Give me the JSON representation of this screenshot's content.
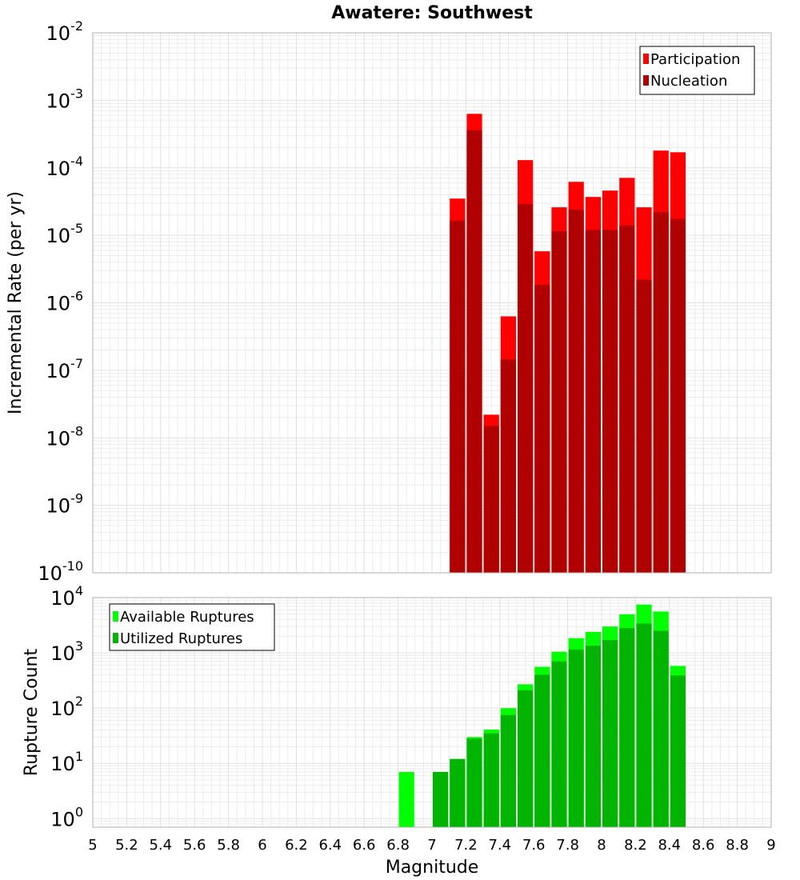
{
  "chart_data": [
    {
      "type": "bar",
      "title": "Awatere: Southwest",
      "xlabel": "",
      "ylabel": "Incremental Rate (per yr)",
      "yscale": "log",
      "xlim": [
        5,
        9
      ],
      "ylim": [
        1e-10,
        0.01
      ],
      "y_tick_exponents": [
        -10,
        -9,
        -8,
        -7,
        -6,
        -5,
        -4,
        -3,
        -2
      ],
      "grid": true,
      "legend_position": "top-right",
      "bin_centers": [
        7.15,
        7.25,
        7.35,
        7.45,
        7.55,
        7.65,
        7.75,
        7.85,
        7.95,
        8.05,
        8.15,
        8.25,
        8.35,
        8.45
      ],
      "series": [
        {
          "name": "Participation",
          "color": "#ff0000",
          "values": [
            3.5e-05,
            0.00063,
            2.2e-08,
            6.3e-07,
            0.00013,
            5.8e-06,
            2.6e-05,
            6.2e-05,
            3.7e-05,
            4.6e-05,
            7.1e-05,
            2.6e-05,
            0.00018,
            0.00017
          ]
        },
        {
          "name": "Nucleation",
          "color": "#b00000",
          "values": [
            1.65e-05,
            0.00036,
            1.5e-08,
            1.45e-07,
            2.9e-05,
            1.85e-06,
            1.15e-05,
            2.4e-05,
            1.2e-05,
            1.2e-05,
            1.4e-05,
            2.2e-06,
            2.2e-05,
            1.75e-05
          ]
        }
      ]
    },
    {
      "type": "bar",
      "title": "",
      "xlabel": "Magnitude",
      "ylabel": "Rupture Count",
      "yscale": "log",
      "xlim": [
        5,
        9
      ],
      "ylim": [
        0.7,
        10000.0
      ],
      "y_tick_exponents": [
        0,
        1,
        2,
        3,
        4
      ],
      "x_tick_labels": [
        "5",
        "5.2",
        "5.4",
        "5.6",
        "5.8",
        "6",
        "6.2",
        "6.4",
        "6.6",
        "6.8",
        "7",
        "7.2",
        "7.4",
        "7.6",
        "7.8",
        "8",
        "8.2",
        "8.4",
        "8.6",
        "8.8",
        "9"
      ],
      "grid": true,
      "legend_position": "top-left",
      "bin_centers": [
        6.85,
        7.05,
        7.15,
        7.25,
        7.35,
        7.45,
        7.55,
        7.65,
        7.75,
        7.85,
        7.95,
        8.05,
        8.15,
        8.25,
        8.35,
        8.45
      ],
      "series": [
        {
          "name": "Available Ruptures",
          "color": "#00ff00",
          "values": [
            7,
            7,
            12,
            30,
            41,
            100,
            270,
            560,
            1050,
            1850,
            2400,
            3000,
            5000,
            7500,
            5600,
            580
          ]
        },
        {
          "name": "Utilized Ruptures",
          "color": "#00b400",
          "values": [
            null,
            7,
            12,
            28,
            35,
            75,
            210,
            400,
            700,
            1150,
            1350,
            1700,
            2800,
            3400,
            2500,
            390
          ]
        }
      ]
    }
  ]
}
